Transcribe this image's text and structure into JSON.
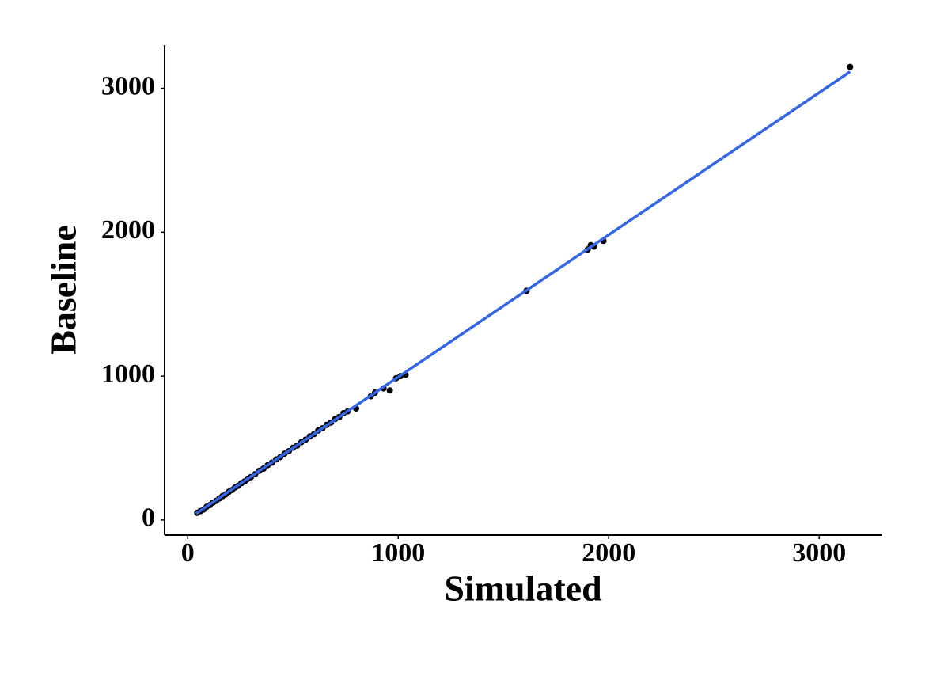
{
  "chart_data": {
    "type": "scatter",
    "x_label": "Simulated",
    "y_label": "Baseline",
    "series": [
      {
        "color": "#000000",
        "x": [
          45,
          60,
          75,
          90,
          105,
          120,
          135,
          150,
          165,
          180,
          195,
          210,
          225,
          240,
          255,
          270,
          285,
          300,
          320,
          340,
          360,
          380,
          400,
          420,
          440,
          460,
          480,
          500,
          520,
          540,
          560,
          580,
          600,
          620,
          640,
          660,
          680,
          700,
          720,
          740,
          760,
          800,
          870,
          890,
          930,
          960,
          990,
          1010,
          1035,
          1610,
          1900,
          1915,
          1930,
          1975,
          3147
        ],
        "values": [
          50,
          62,
          73,
          92,
          103,
          121,
          133,
          150,
          166,
          178,
          196,
          208,
          226,
          238,
          256,
          268,
          286,
          298,
          318,
          342,
          357,
          381,
          398,
          421,
          437,
          461,
          478,
          502,
          517,
          541,
          558,
          581,
          597,
          622,
          637,
          661,
          677,
          702,
          716,
          742,
          755,
          775,
          860,
          885,
          915,
          900,
          985,
          1000,
          1010,
          1593,
          1880,
          1910,
          1900,
          1940,
          3148
        ]
      }
    ],
    "trend_line": {
      "color": "#3366e6",
      "x": [
        40,
        3147
      ],
      "values": [
        45,
        3115
      ]
    },
    "xlim": [
      -110,
      3300
    ],
    "ylim": [
      -105,
      3300
    ],
    "xticks": [
      0,
      1000,
      2000,
      3000
    ],
    "yticks": [
      0,
      1000,
      2000,
      3000
    ],
    "grid": false
  }
}
